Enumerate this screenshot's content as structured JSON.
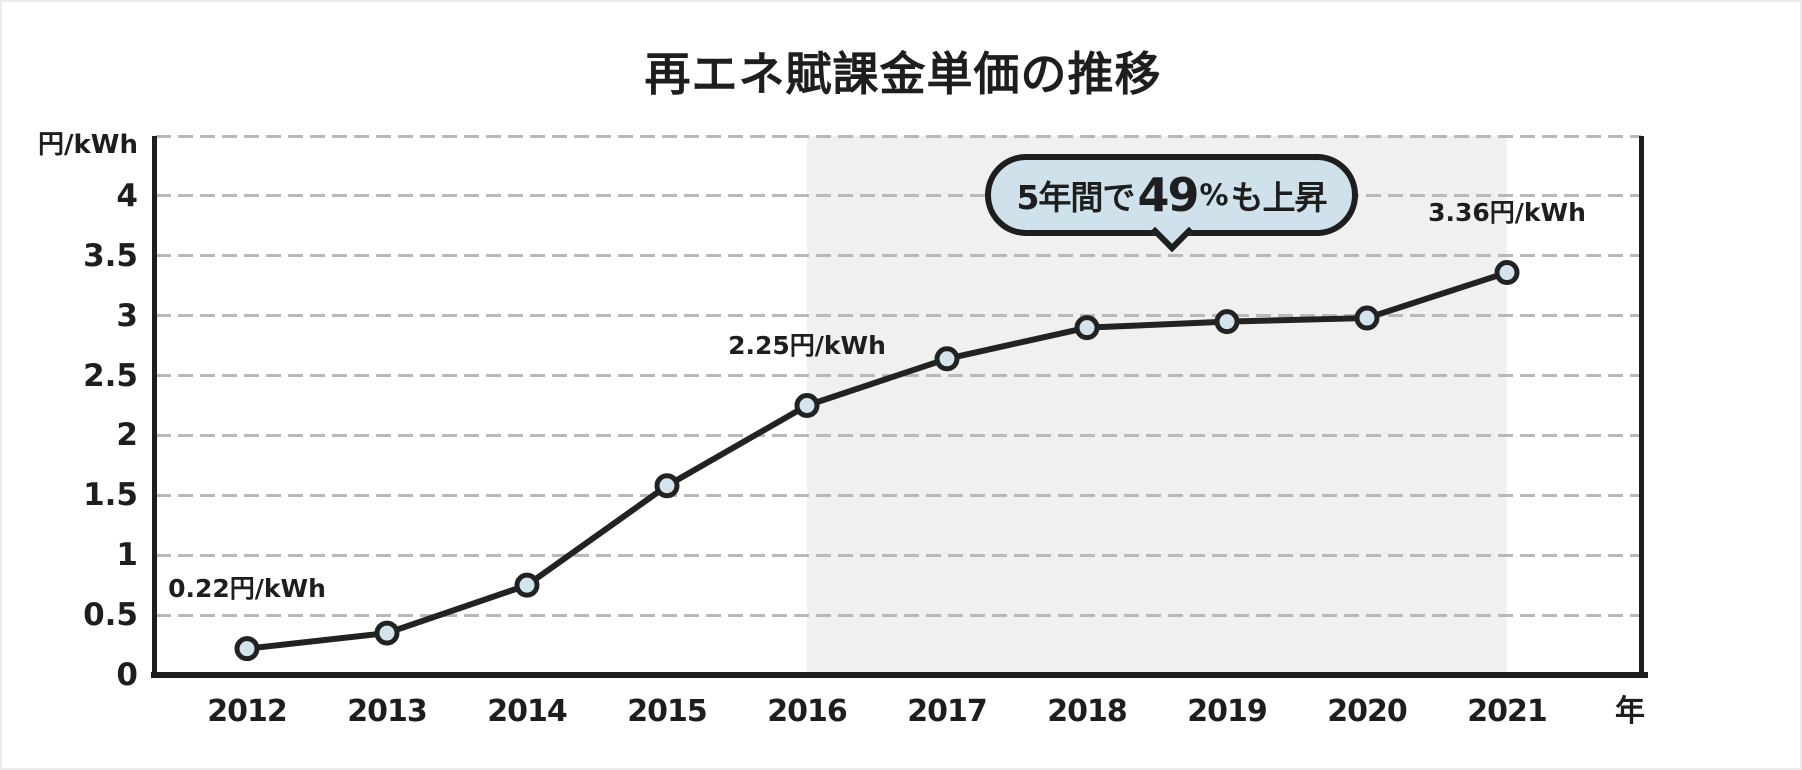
{
  "chart_data": {
    "type": "line",
    "title": "再エネ賦課金単価の推移",
    "ylabel": "円/kWh",
    "xlabel": "年",
    "categories": [
      "2012",
      "2013",
      "2014",
      "2015",
      "2016",
      "2017",
      "2018",
      "2019",
      "2020",
      "2021"
    ],
    "series": [
      {
        "name": "再エネ賦課金単価",
        "values": [
          0.22,
          0.35,
          0.75,
          1.58,
          2.25,
          2.64,
          2.9,
          2.95,
          2.98,
          3.36
        ]
      }
    ],
    "ylim": [
      0,
      4.5
    ],
    "ytick_step": 0.5,
    "yticks": [
      "0",
      "0.5",
      "1",
      "1.5",
      "2",
      "2.5",
      "3",
      "3.5",
      "4"
    ],
    "grid": {
      "horizontal": true,
      "style": "dashed"
    },
    "legend": "none",
    "highlight_band": {
      "from": "2016",
      "to": "2021"
    },
    "point_labels": [
      {
        "category": "2012",
        "text": "0.22円/kWh"
      },
      {
        "category": "2016",
        "text": "2.25円/kWh"
      },
      {
        "category": "2021",
        "text": "3.36円/kWh"
      }
    ],
    "callout": {
      "full_text": "5年間で49%も上昇",
      "segments": [
        {
          "text": "5年間で"
        },
        {
          "text": "49"
        },
        {
          "text": "%"
        },
        {
          "text": "も上昇"
        }
      ],
      "anchor": "between 2018 and 2019"
    }
  },
  "colors": {
    "ink": "#1e1e1e",
    "line": "#222222",
    "point-fill": "#d3e4ee",
    "band": "#f0f0f0",
    "grid": "#b9b9b9",
    "callout-fill": "#cfe1ea",
    "page-border": "#ececec",
    "background": "#ffffff"
  }
}
